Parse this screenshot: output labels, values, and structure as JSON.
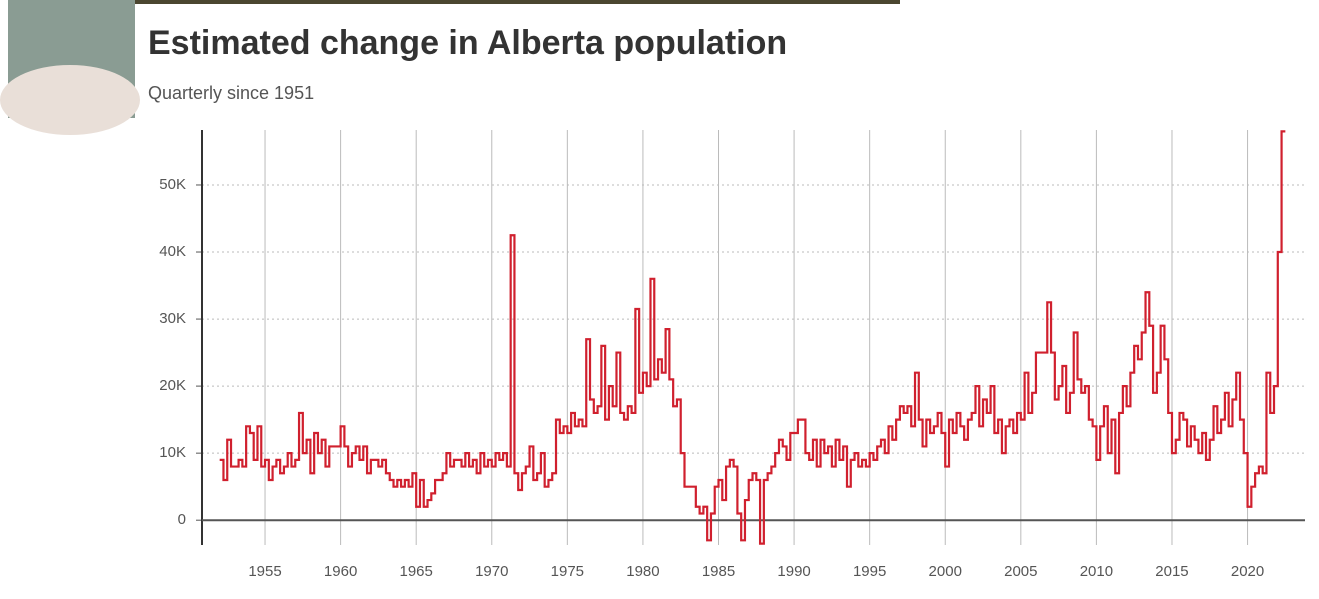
{
  "chart_data": {
    "type": "step-line",
    "title": "Estimated change in Alberta population",
    "subtitle": "Quarterly since 1951",
    "xlim": [
      1950.83,
      2023.8
    ],
    "xticks": [
      1955,
      1960,
      1965,
      1970,
      1975,
      1980,
      1985,
      1990,
      1995,
      2000,
      2005,
      2010,
      2015,
      2020
    ],
    "ylim": [
      -3700,
      58200
    ],
    "yticks": [
      0,
      {
        "value": 10000,
        "label": "10K"
      },
      {
        "value": 20000,
        "label": "20K"
      },
      {
        "value": 30000,
        "label": "30K"
      },
      {
        "value": 40000,
        "label": "40K"
      },
      {
        "value": 50000,
        "label": "50K"
      }
    ],
    "grid": true,
    "x": [
      1952,
      1952.25,
      1952.5,
      1952.75,
      1953,
      1953.25,
      1953.5,
      1953.75,
      1954,
      1954.25,
      1954.5,
      1954.75,
      1955,
      1955.25,
      1955.5,
      1955.75,
      1956,
      1956.25,
      1956.5,
      1956.75,
      1957,
      1957.25,
      1957.5,
      1957.75,
      1958,
      1958.25,
      1958.5,
      1958.75,
      1959,
      1959.25,
      1959.5,
      1959.75,
      1960,
      1960.25,
      1960.5,
      1960.75,
      1961,
      1961.25,
      1961.5,
      1961.75,
      1962,
      1962.25,
      1962.5,
      1962.75,
      1963,
      1963.25,
      1963.5,
      1963.75,
      1964,
      1964.25,
      1964.5,
      1964.75,
      1965,
      1965.25,
      1965.5,
      1965.75,
      1966,
      1966.25,
      1966.5,
      1966.75,
      1967,
      1967.25,
      1967.5,
      1967.75,
      1968,
      1968.25,
      1968.5,
      1968.75,
      1969,
      1969.25,
      1969.5,
      1969.75,
      1970,
      1970.25,
      1970.5,
      1970.75,
      1971,
      1971.25,
      1971.5,
      1971.75,
      1972,
      1972.25,
      1972.5,
      1972.75,
      1973,
      1973.25,
      1973.5,
      1973.75,
      1974,
      1974.25,
      1974.5,
      1974.75,
      1975,
      1975.25,
      1975.5,
      1975.75,
      1976,
      1976.25,
      1976.5,
      1976.75,
      1977,
      1977.25,
      1977.5,
      1977.75,
      1978,
      1978.25,
      1978.5,
      1978.75,
      1979,
      1979.25,
      1979.5,
      1979.75,
      1980,
      1980.25,
      1980.5,
      1980.75,
      1981,
      1981.25,
      1981.5,
      1981.75,
      1982,
      1982.25,
      1982.5,
      1982.75,
      1983,
      1983.25,
      1983.5,
      1983.75,
      1984,
      1984.25,
      1984.5,
      1984.75,
      1985,
      1985.25,
      1985.5,
      1985.75,
      1986,
      1986.25,
      1986.5,
      1986.75,
      1987,
      1987.25,
      1987.5,
      1987.75,
      1988,
      1988.25,
      1988.5,
      1988.75,
      1989,
      1989.25,
      1989.5,
      1989.75,
      1990,
      1990.25,
      1990.5,
      1990.75,
      1991,
      1991.25,
      1991.5,
      1991.75,
      1992,
      1992.25,
      1992.5,
      1992.75,
      1993,
      1993.25,
      1993.5,
      1993.75,
      1994,
      1994.25,
      1994.5,
      1994.75,
      1995,
      1995.25,
      1995.5,
      1995.75,
      1996,
      1996.25,
      1996.5,
      1996.75,
      1997,
      1997.25,
      1997.5,
      1997.75,
      1998,
      1998.25,
      1998.5,
      1998.75,
      1999,
      1999.25,
      1999.5,
      1999.75,
      2000,
      2000.25,
      2000.5,
      2000.75,
      2001,
      2001.25,
      2001.5,
      2001.75,
      2002,
      2002.25,
      2002.5,
      2002.75,
      2003,
      2003.25,
      2003.5,
      2003.75,
      2004,
      2004.25,
      2004.5,
      2004.75,
      2005,
      2005.25,
      2005.5,
      2005.75,
      2006,
      2006.25,
      2006.5,
      2006.75,
      2007,
      2007.25,
      2007.5,
      2007.75,
      2008,
      2008.25,
      2008.5,
      2008.75,
      2009,
      2009.25,
      2009.5,
      2009.75,
      2010,
      2010.25,
      2010.5,
      2010.75,
      2011,
      2011.25,
      2011.5,
      2011.75,
      2012,
      2012.25,
      2012.5,
      2012.75,
      2013,
      2013.25,
      2013.5,
      2013.75,
      2014,
      2014.25,
      2014.5,
      2014.75,
      2015,
      2015.25,
      2015.5,
      2015.75,
      2016,
      2016.25,
      2016.5,
      2016.75,
      2017,
      2017.25,
      2017.5,
      2017.75,
      2018,
      2018.25,
      2018.5,
      2018.75,
      2019,
      2019.25,
      2019.5,
      2019.75,
      2020,
      2020.25,
      2020.5,
      2020.75,
      2021,
      2021.25,
      2021.5,
      2021.75,
      2022,
      2022.25
    ],
    "series": [
      {
        "color": "#d0202e",
        "values": [
          9000,
          6000,
          12000,
          8000,
          8000,
          9000,
          8000,
          14000,
          13000,
          9000,
          14000,
          8000,
          9000,
          6000,
          8000,
          9000,
          7000,
          8000,
          10000,
          8000,
          9000,
          16000,
          10000,
          12000,
          7000,
          13000,
          10000,
          12000,
          8000,
          11000,
          11000,
          11000,
          14000,
          11000,
          8000,
          10000,
          11000,
          9000,
          11000,
          7000,
          9000,
          9000,
          8000,
          9000,
          7000,
          6000,
          5000,
          6000,
          5000,
          6000,
          5000,
          7000,
          2000,
          6000,
          2000,
          3000,
          4000,
          6000,
          6000,
          7000,
          10000,
          8000,
          9000,
          9000,
          8000,
          10000,
          8000,
          9000,
          7000,
          10000,
          8000,
          9000,
          8000,
          10000,
          9000,
          10000,
          8000,
          42500,
          7000,
          4500,
          7000,
          8000,
          11000,
          6000,
          7000,
          10000,
          5000,
          6000,
          7000,
          15000,
          13000,
          14000,
          13000,
          16000,
          14000,
          15000,
          14000,
          27000,
          18000,
          16000,
          17000,
          26000,
          15000,
          20000,
          17000,
          25000,
          16000,
          15000,
          17000,
          16000,
          31500,
          19000,
          22000,
          20000,
          36000,
          21000,
          24000,
          22000,
          28500,
          21000,
          17000,
          18000,
          10000,
          5000,
          5000,
          5000,
          2000,
          1000,
          2000,
          -3000,
          1000,
          5000,
          6000,
          3000,
          8000,
          9000,
          8000,
          1000,
          -3000,
          3000,
          6000,
          7000,
          6000,
          -3500,
          6000,
          7000,
          8000,
          10000,
          12000,
          11000,
          9000,
          13000,
          13000,
          15000,
          15000,
          10000,
          9000,
          12000,
          8000,
          12000,
          10000,
          11000,
          8000,
          12000,
          9000,
          11000,
          5000,
          9000,
          10000,
          8000,
          9000,
          8000,
          10000,
          9000,
          11000,
          12000,
          10000,
          14000,
          12000,
          15000,
          17000,
          16000,
          17000,
          14000,
          22000,
          15000,
          11000,
          15000,
          13000,
          14000,
          16000,
          13000,
          8000,
          15000,
          13000,
          16000,
          14000,
          12000,
          15000,
          16000,
          20000,
          14000,
          18000,
          16000,
          20000,
          13000,
          15000,
          10000,
          14000,
          15000,
          13000,
          16000,
          15000,
          22000,
          16000,
          19000,
          25000,
          25000,
          25000,
          32500,
          25000,
          18000,
          20000,
          23000,
          16000,
          19000,
          28000,
          21000,
          19000,
          20000,
          15000,
          14000,
          9000,
          14000,
          17000,
          10000,
          15000,
          7000,
          16000,
          20000,
          17000,
          22000,
          26000,
          24000,
          28000,
          34000,
          29000,
          19000,
          22000,
          29000,
          24000,
          16000,
          10000,
          12000,
          16000,
          15000,
          11000,
          14000,
          12000,
          10000,
          13000,
          9000,
          12000,
          17000,
          13000,
          15000,
          19000,
          14000,
          18000,
          22000,
          15000,
          10000,
          2000,
          5000,
          7000,
          8000,
          7000,
          22000,
          16000,
          20000,
          40000,
          58000
        ]
      }
    ]
  }
}
